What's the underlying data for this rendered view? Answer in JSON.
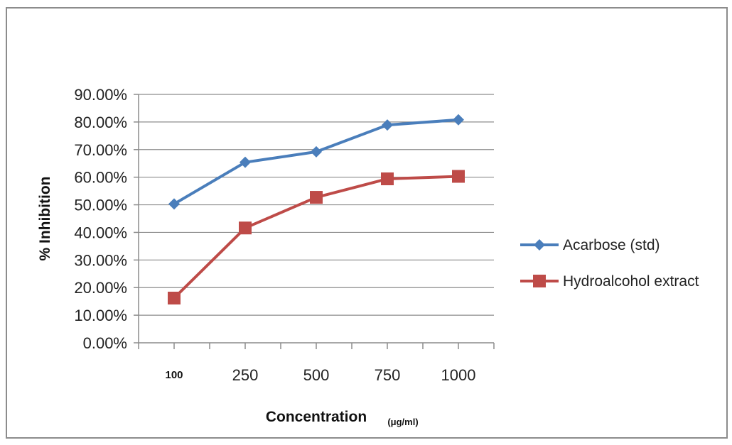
{
  "chart_data": {
    "type": "line",
    "title": "",
    "categories": [
      "100",
      "250",
      "500",
      "750",
      "1000"
    ],
    "series": [
      {
        "name": "Acarbose (std)",
        "color": "#4a7ebb",
        "marker": "diamond",
        "values": [
          0.503,
          0.654,
          0.692,
          0.789,
          0.808
        ]
      },
      {
        "name": "Hydroalcohol extract",
        "color": "#be4b48",
        "marker": "square",
        "values": [
          0.162,
          0.416,
          0.527,
          0.594,
          0.603
        ]
      }
    ],
    "ylim": [
      0,
      0.9
    ],
    "yticks": [
      "0.00%",
      "10.00%",
      "20.00%",
      "30.00%",
      "40.00%",
      "50.00%",
      "60.00%",
      "70.00%",
      "80.00%",
      "90.00%"
    ],
    "xlabel": "Concentration",
    "xlabel_unit": "(μg/ml)",
    "ylabel": "% Inhibition",
    "grid": true,
    "legend_position": "right"
  }
}
